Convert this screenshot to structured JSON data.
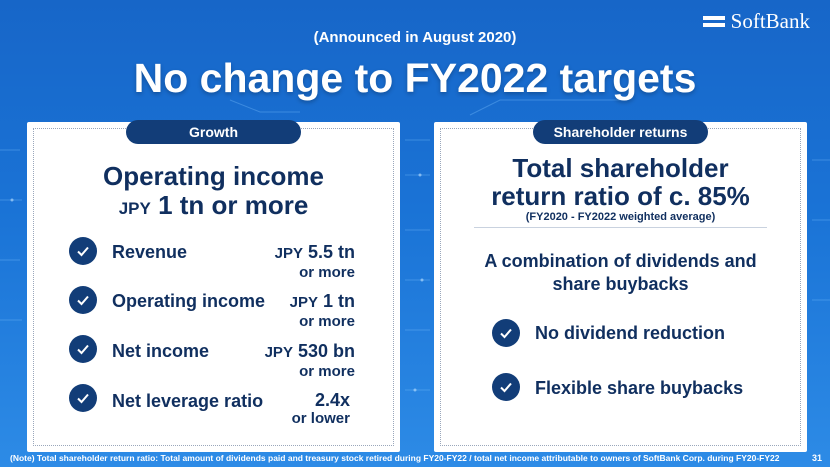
{
  "logo": {
    "text": "SoftBank"
  },
  "header": {
    "announcement": "(Announced in August 2020)",
    "title": "No change to FY2022 targets"
  },
  "growth": {
    "pill": "Growth",
    "headline": "Operating income",
    "target_unit": "JPY",
    "target_value": "1 tn or more",
    "items": [
      {
        "label": "Revenue",
        "unit": "JPY",
        "value": "5.5 tn",
        "condition": "or more"
      },
      {
        "label": "Operating income",
        "unit": "JPY",
        "value": "1 tn",
        "condition": "or more"
      },
      {
        "label": "Net income",
        "unit": "JPY",
        "value": "530 bn",
        "condition": "or more"
      },
      {
        "label": "Net leverage ratio",
        "unit": "",
        "value": "2.4x",
        "condition": "or lower"
      }
    ]
  },
  "shareholder": {
    "pill": "Shareholder returns",
    "headline_line1": "Total shareholder",
    "headline_line2": "return ratio of c. 85%",
    "subnote": "(FY2020 - FY2022 weighted average)",
    "combo_line1": "A combination of dividends and",
    "combo_line2": "share buybacks",
    "items": [
      {
        "label": "No dividend reduction"
      },
      {
        "label": "Flexible share buybacks"
      }
    ]
  },
  "footer": {
    "note": "(Note) Total shareholder return ratio: Total amount of dividends paid and treasury stock retired during FY20-FY22 / total net income attributable to owners of SoftBank Corp. during FY20-FY22",
    "page_number": "31"
  }
}
